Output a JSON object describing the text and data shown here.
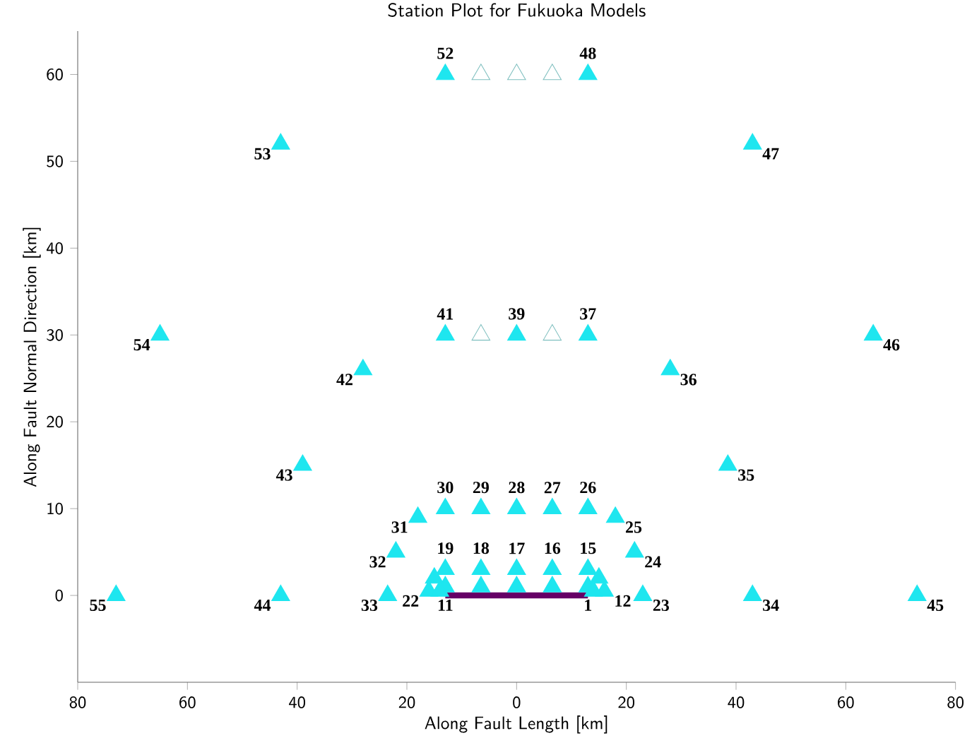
{
  "chart_data": {
    "type": "scatter",
    "title": "Station Plot for Fukuoka Models",
    "xlabel": "Along Fault Length [km]",
    "ylabel": "Along Fault Normal Direction [km]",
    "series": [
      {
        "color": "#1ee6ef",
        "marker": "triangle",
        "x": [
          -13,
          13,
          -43,
          43,
          -65,
          -13,
          0,
          13,
          65,
          -28,
          28,
          -39,
          38.5,
          -13,
          -6.5,
          0,
          6.5,
          13,
          -18,
          18,
          -22,
          21.5,
          -13,
          -6.5,
          0,
          6.5,
          13,
          -13,
          -6.5,
          0,
          6.5,
          13,
          -15,
          15,
          -16,
          16,
          -14,
          14,
          -73,
          -43,
          -23.5,
          23,
          43,
          73
        ],
        "values": [
          60,
          60,
          52,
          52,
          30,
          30,
          30,
          30,
          30,
          26,
          26,
          15,
          15,
          10,
          10,
          10,
          10,
          10,
          9,
          9,
          5,
          5,
          3,
          3,
          3,
          3,
          3,
          1,
          1,
          1,
          1,
          1,
          2,
          2,
          0.5,
          0.5,
          0.5,
          0.5,
          0,
          0,
          0,
          0,
          0,
          0
        ]
      },
      {
        "color": "#7fbfbf",
        "marker": "triangle-open",
        "x": [
          -6.5,
          0,
          6.5,
          -6.5,
          6.5
        ],
        "values": [
          60,
          60,
          60,
          30,
          30
        ]
      },
      {
        "type": "line",
        "color": "#660066",
        "marker": "none",
        "x": [
          -13,
          13
        ],
        "values": [
          0,
          0
        ]
      }
    ],
    "xlim": [
      -80,
      80
    ],
    "ylim": [
      -10,
      65
    ],
    "xticks": [
      {
        "value": -80,
        "label": "80"
      },
      {
        "value": -60,
        "label": "60"
      },
      {
        "value": -40,
        "label": "40"
      },
      {
        "value": -20,
        "label": "20"
      },
      0,
      20,
      40,
      60,
      80
    ],
    "yticks": [
      0,
      10,
      20,
      30,
      40,
      50,
      60
    ],
    "annotations": [
      {
        "text": "52",
        "x": -13,
        "y": 60
      },
      {
        "text": "48",
        "x": 13,
        "y": 60
      },
      {
        "text": "53",
        "x": -43,
        "y": 52
      },
      {
        "text": "47",
        "x": 43,
        "y": 52
      },
      {
        "text": "54",
        "x": -65,
        "y": 30
      },
      {
        "text": "41",
        "x": -13,
        "y": 30
      },
      {
        "text": "39",
        "x": 0,
        "y": 30
      },
      {
        "text": "37",
        "x": 13,
        "y": 30
      },
      {
        "text": "46",
        "x": 65,
        "y": 30
      },
      {
        "text": "42",
        "x": -28,
        "y": 26
      },
      {
        "text": "36",
        "x": 28,
        "y": 26
      },
      {
        "text": "43",
        "x": -39,
        "y": 15
      },
      {
        "text": "35",
        "x": 38.5,
        "y": 15
      },
      {
        "text": "30",
        "x": -13,
        "y": 10
      },
      {
        "text": "29",
        "x": -6.5,
        "y": 10
      },
      {
        "text": "28",
        "x": 0,
        "y": 10
      },
      {
        "text": "27",
        "x": 6.5,
        "y": 10
      },
      {
        "text": "26",
        "x": 13,
        "y": 10
      },
      {
        "text": "31",
        "x": -18,
        "y": 9
      },
      {
        "text": "25",
        "x": 18,
        "y": 9
      },
      {
        "text": "32",
        "x": -22,
        "y": 5
      },
      {
        "text": "24",
        "x": 21.5,
        "y": 5
      },
      {
        "text": "19",
        "x": -13,
        "y": 3
      },
      {
        "text": "18",
        "x": -6.5,
        "y": 3
      },
      {
        "text": "17",
        "x": 0,
        "y": 3
      },
      {
        "text": "16",
        "x": 6.5,
        "y": 3
      },
      {
        "text": "15",
        "x": 13,
        "y": 3
      },
      {
        "text": "22",
        "x": -16,
        "y": 0.5
      },
      {
        "text": "11",
        "x": -13,
        "y": 0
      },
      {
        "text": "1",
        "x": 13,
        "y": 0
      },
      {
        "text": "12",
        "x": 16,
        "y": 0.5
      },
      {
        "text": "55",
        "x": -73,
        "y": 0
      },
      {
        "text": "44",
        "x": -43,
        "y": 0
      },
      {
        "text": "33",
        "x": -23.5,
        "y": 0
      },
      {
        "text": "23",
        "x": 23,
        "y": 0
      },
      {
        "text": "34",
        "x": 43,
        "y": 0
      },
      {
        "text": "45",
        "x": 73,
        "y": 0
      }
    ]
  }
}
